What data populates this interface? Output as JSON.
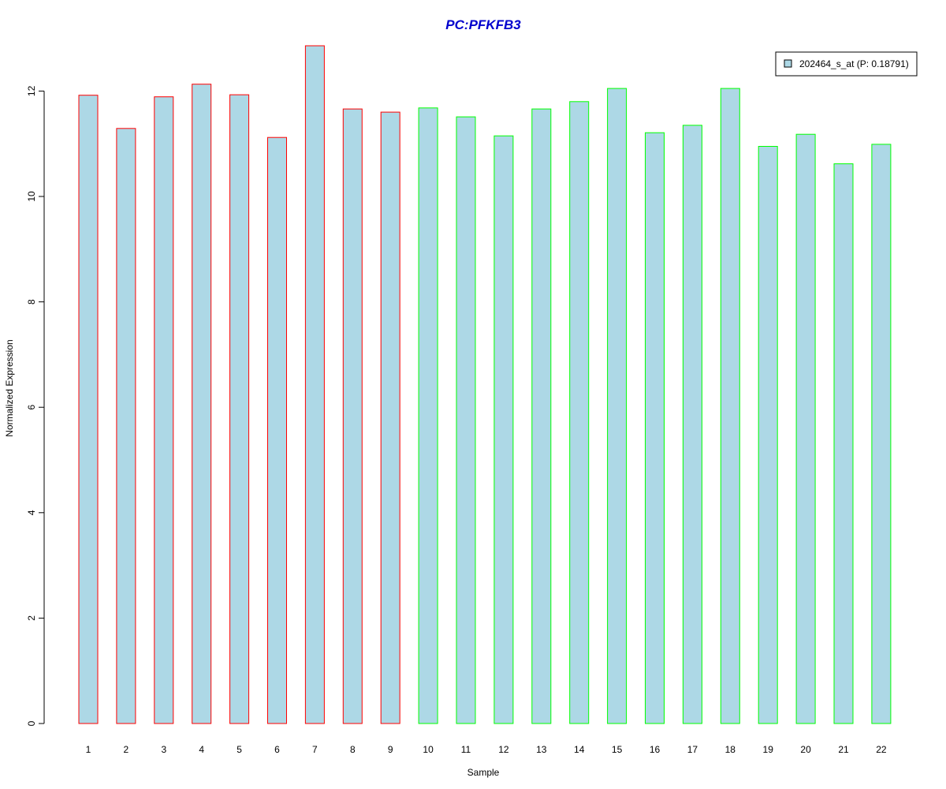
{
  "chart_data": {
    "type": "bar",
    "title": "PC:PFKFB3",
    "xlabel": "Sample",
    "ylabel": "Normalized Expression",
    "categories": [
      "1",
      "2",
      "3",
      "4",
      "5",
      "6",
      "7",
      "8",
      "9",
      "10",
      "11",
      "12",
      "13",
      "14",
      "15",
      "16",
      "17",
      "18",
      "19",
      "20",
      "21",
      "22"
    ],
    "series": [
      {
        "name": "202464_s_at (P: 0.18791)",
        "values": [
          11.92,
          11.29,
          11.89,
          12.13,
          11.93,
          11.12,
          12.86,
          11.66,
          11.6,
          11.68,
          11.51,
          11.15,
          11.66,
          11.8,
          12.05,
          11.21,
          11.35,
          12.05,
          10.95,
          11.18,
          10.62,
          10.99
        ]
      }
    ],
    "groups": [
      1,
      1,
      1,
      1,
      1,
      1,
      1,
      1,
      1,
      2,
      2,
      2,
      2,
      2,
      2,
      2,
      2,
      2,
      2,
      2,
      2,
      2
    ],
    "yticks": [
      0,
      2,
      4,
      6,
      8,
      10,
      12
    ],
    "ylim": [
      0,
      12.95
    ],
    "legend_position": "top-right",
    "grid": false,
    "colors": {
      "bar_fill": "#ADD8E6",
      "group1_border": "#FF0000",
      "group2_border": "#00FF00",
      "title": "#0000CD",
      "axis": "#000000"
    }
  }
}
